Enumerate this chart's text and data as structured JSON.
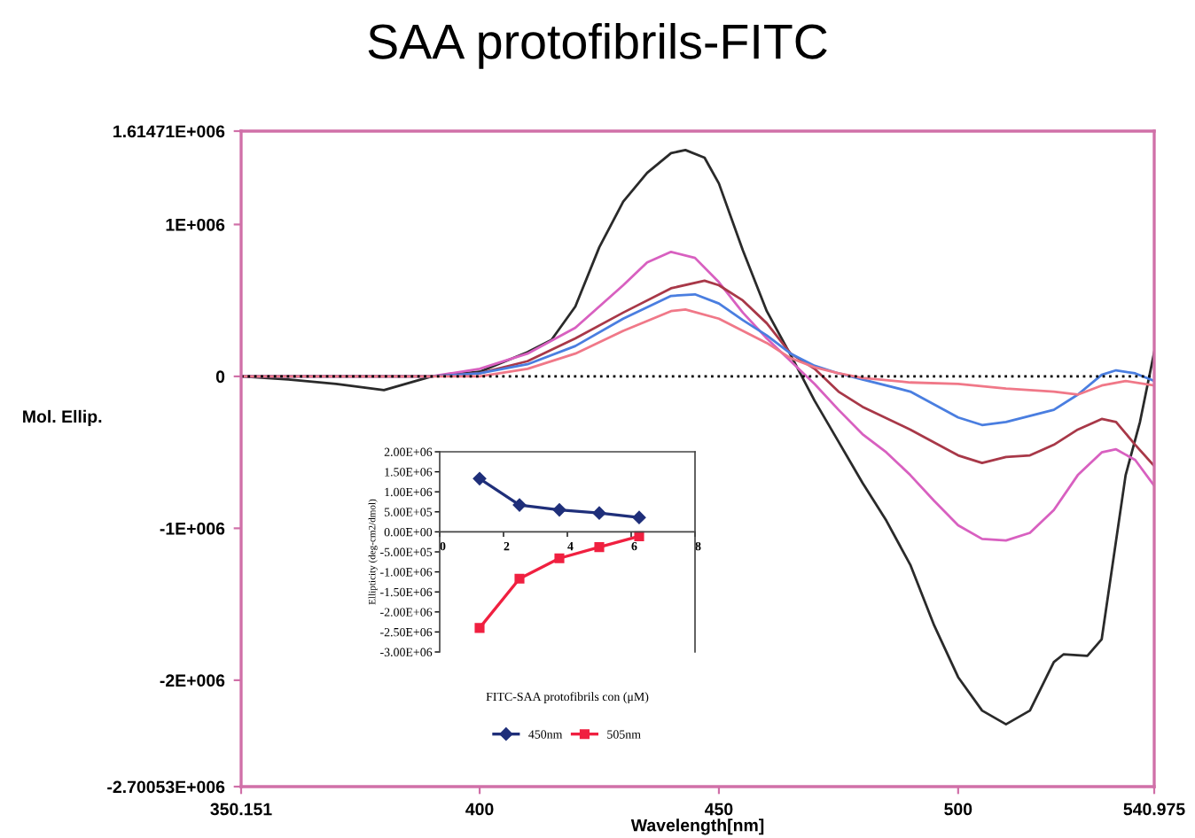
{
  "chart_data": [
    {
      "type": "line",
      "title": "SAA protofibrils-FITC",
      "xlabel": "Wavelength[nm]",
      "ylabel": "Mol. Ellip.",
      "xlim": [
        350.151,
        540.975
      ],
      "ylim": [
        -2700530,
        1614710
      ],
      "xticks": [
        350.151,
        400,
        450,
        500,
        540.975
      ],
      "yticks": [
        {
          "value": 1614710,
          "label": "1.61471E+006"
        },
        {
          "value": 1000000,
          "label": "1E+006"
        },
        0,
        {
          "value": -1000000,
          "label": "-1E+006"
        },
        {
          "value": -2000000,
          "label": "-2E+006"
        },
        {
          "value": -2700530,
          "label": "-2.70053E+006"
        }
      ],
      "grid": false,
      "legend": false,
      "marker": "none",
      "line_style": "solid",
      "ref_lines": [
        {
          "axis": "y",
          "value": 0,
          "color": "#000000",
          "line_style": "dotted"
        }
      ],
      "series": [
        {
          "color": "#2a2a2a",
          "x": [
            350.151,
            360,
            370,
            380,
            390,
            400,
            410,
            415,
            420,
            425,
            430,
            435,
            440,
            443,
            447,
            450,
            455,
            460,
            465,
            470,
            475,
            480,
            485,
            490,
            495,
            500,
            505,
            510,
            515,
            520,
            522,
            527,
            530,
            535,
            538,
            540.975
          ],
          "values": [
            0,
            -20000,
            -50000,
            -90000,
            0,
            30000,
            160000,
            240000,
            460000,
            850000,
            1150000,
            1340000,
            1470000,
            1490000,
            1440000,
            1270000,
            830000,
            430000,
            140000,
            -160000,
            -430000,
            -700000,
            -950000,
            -1240000,
            -1640000,
            -1980000,
            -2200000,
            -2290000,
            -2200000,
            -1880000,
            -1830000,
            -1840000,
            -1730000,
            -650000,
            -300000,
            160000
          ]
        },
        {
          "color": "#d860c0",
          "x": [
            350.151,
            390,
            400,
            410,
            420,
            430,
            435,
            440,
            445,
            450,
            455,
            460,
            465,
            470,
            475,
            480,
            485,
            490,
            495,
            500,
            505,
            510,
            515,
            520,
            525,
            530,
            533,
            537,
            540.975
          ],
          "values": [
            0,
            0,
            50000,
            150000,
            320000,
            600000,
            750000,
            820000,
            780000,
            620000,
            420000,
            250000,
            100000,
            -50000,
            -220000,
            -380000,
            -500000,
            -650000,
            -820000,
            -980000,
            -1070000,
            -1080000,
            -1030000,
            -880000,
            -650000,
            -500000,
            -480000,
            -550000,
            -720000
          ]
        },
        {
          "color": "#a83848",
          "x": [
            350.151,
            390,
            400,
            410,
            420,
            430,
            440,
            447,
            450,
            455,
            460,
            465,
            470,
            475,
            480,
            490,
            500,
            505,
            510,
            515,
            520,
            525,
            530,
            533,
            537,
            540.975
          ],
          "values": [
            0,
            0,
            20000,
            100000,
            250000,
            420000,
            580000,
            630000,
            600000,
            500000,
            350000,
            150000,
            50000,
            -100000,
            -200000,
            -350000,
            -520000,
            -570000,
            -530000,
            -520000,
            -450000,
            -350000,
            -280000,
            -300000,
            -450000,
            -590000
          ]
        },
        {
          "color": "#4a7ee0",
          "x": [
            350.151,
            390,
            400,
            410,
            420,
            430,
            440,
            445,
            450,
            455,
            460,
            465,
            470,
            475,
            480,
            490,
            500,
            505,
            510,
            520,
            525,
            530,
            533,
            537,
            540.975
          ],
          "values": [
            0,
            0,
            20000,
            80000,
            200000,
            380000,
            530000,
            540000,
            480000,
            370000,
            270000,
            150000,
            70000,
            20000,
            -20000,
            -100000,
            -270000,
            -320000,
            -300000,
            -220000,
            -120000,
            10000,
            40000,
            20000,
            -30000
          ]
        },
        {
          "color": "#f07888",
          "x": [
            350.151,
            390,
            400,
            410,
            420,
            430,
            440,
            443,
            450,
            455,
            460,
            465,
            470,
            475,
            480,
            490,
            500,
            510,
            520,
            525,
            530,
            535,
            540.975
          ],
          "values": [
            0,
            0,
            0,
            50000,
            150000,
            300000,
            430000,
            440000,
            380000,
            300000,
            220000,
            120000,
            60000,
            20000,
            -10000,
            -40000,
            -50000,
            -80000,
            -100000,
            -120000,
            -60000,
            -30000,
            -60000
          ]
        }
      ]
    },
    {
      "type": "line",
      "xlabel": "FITC-SAA protofibrils con (μM)",
      "ylabel": "Ellipticity (deg-cm2/dmol)",
      "xlim": [
        0,
        8
      ],
      "ylim": [
        -3000000,
        2000000
      ],
      "xticks": [
        0,
        2,
        4,
        6,
        8
      ],
      "yticks": [
        {
          "value": 2000000,
          "label": "2.00E+06"
        },
        {
          "value": 1500000,
          "label": "1.50E+06"
        },
        {
          "value": 1000000,
          "label": "1.00E+06"
        },
        {
          "value": 500000,
          "label": "5.00E+05"
        },
        {
          "value": 0,
          "label": "0.00E+00"
        },
        {
          "value": -500000,
          "label": "-5.00E+05"
        },
        {
          "value": -1000000,
          "label": "-1.00E+06"
        },
        {
          "value": -1500000,
          "label": "-1.50E+06"
        },
        {
          "value": -2000000,
          "label": "-2.00E+06"
        },
        {
          "value": -2500000,
          "label": "-2.50E+06"
        },
        {
          "value": -3000000,
          "label": "-3.00E+06"
        }
      ],
      "grid": false,
      "legend": "bottom",
      "line_style": "solid",
      "x": [
        1.25,
        2.5,
        3.75,
        5,
        6.25
      ],
      "series": [
        {
          "name": "450nm",
          "color": "#1f2f7a",
          "marker": "diamond",
          "values": [
            1330000,
            670000,
            550000,
            470000,
            360000
          ]
        },
        {
          "name": "505nm",
          "color": "#f02040",
          "marker": "square",
          "values": [
            -2400000,
            -1170000,
            -660000,
            -380000,
            -110000
          ]
        }
      ]
    }
  ]
}
